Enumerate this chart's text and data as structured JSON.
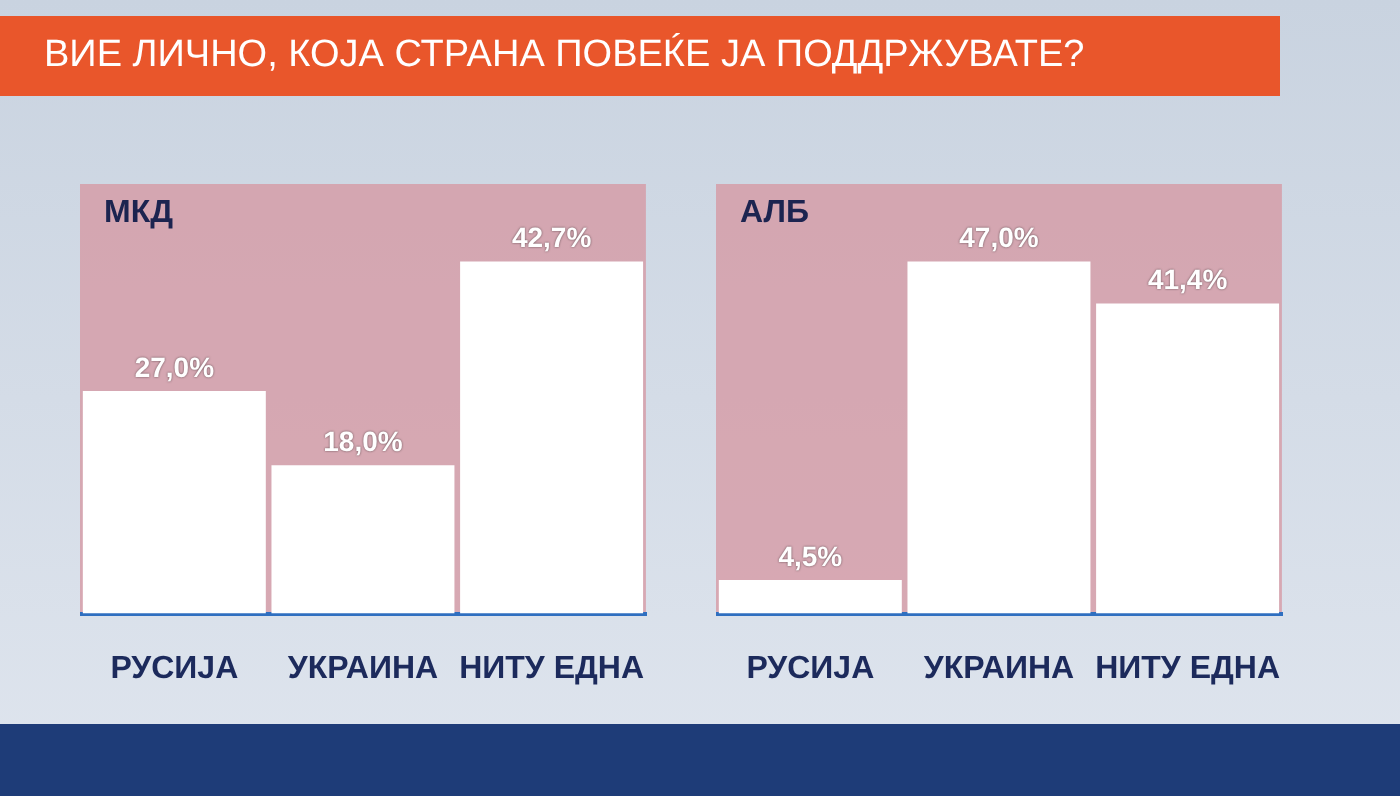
{
  "chart_data": [
    {
      "type": "bar",
      "title": "ВИЕ ЛИЧНО, КОЈА СТРАНА ПОВЕЌЕ ЈА ПОДДРЖУВАТЕ?",
      "subtitle": "МКД",
      "categories": [
        "РУСИЈА",
        "УКРАИНА",
        "НИТУ ЕДНА"
      ],
      "values": [
        27.0,
        18.0,
        42.7
      ],
      "value_labels": [
        "27,0%",
        "18,0%",
        "42,7%"
      ],
      "color": "#ffffff",
      "tick_labels": "x",
      "legend": false
    },
    {
      "type": "bar",
      "subtitle": "АЛБ",
      "categories": [
        "РУСИЈА",
        "УКРАИНА",
        "НИТУ ЕДНА"
      ],
      "values": [
        4.5,
        47.0,
        41.4
      ],
      "value_labels": [
        "4,5%",
        "47,0%",
        "41,4%"
      ],
      "color": "#ffffff",
      "tick_labels": "x",
      "legend": false
    }
  ]
}
